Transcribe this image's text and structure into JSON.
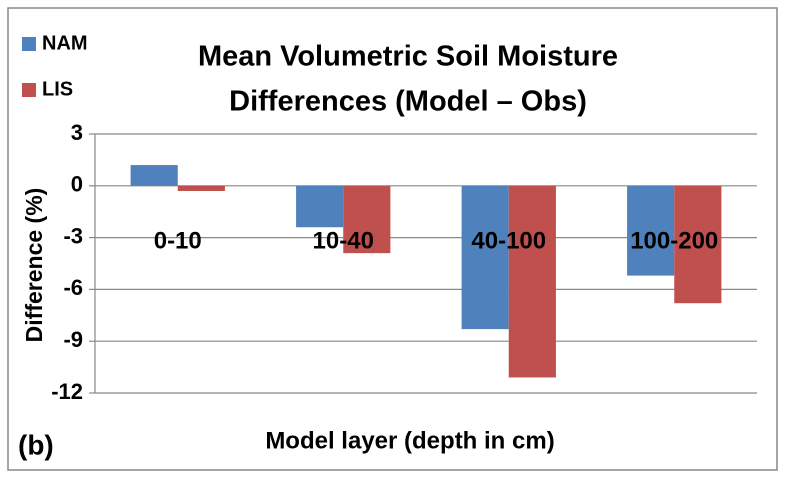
{
  "chart_data": {
    "type": "bar",
    "title": [
      "Mean Volumetric Soil Moisture",
      "Differences (Model – Obs)"
    ],
    "x_label": "Model layer (depth in cm)",
    "y_label": "Difference (%)",
    "annotation": "(b)",
    "categories": [
      "0-10",
      "10-40",
      "40-100",
      "100-200"
    ],
    "series": [
      {
        "name": "NAM",
        "color": "#4f81bd",
        "values": [
          1.2,
          -2.4,
          -8.3,
          -5.2
        ]
      },
      {
        "name": "LIS",
        "color": "#c0504d",
        "values": [
          -0.3,
          -3.9,
          -11.1,
          -6.8
        ]
      }
    ],
    "ylim": [
      -12,
      3
    ],
    "yticks": [
      3,
      0,
      -3,
      -6,
      -9,
      -12
    ],
    "grid": true,
    "legend": "top-left"
  }
}
